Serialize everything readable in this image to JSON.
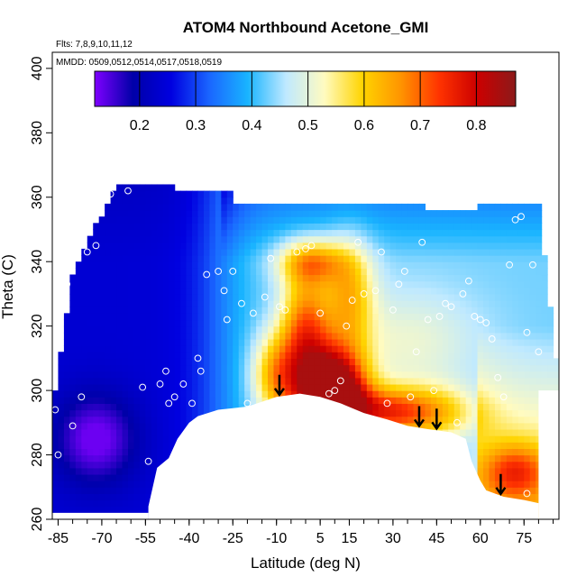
{
  "chart_data": {
    "type": "heatmap",
    "title": "ATOM4 Northbound Acetone_GMI",
    "notes": [
      "Flts: 7,8,9,10,11,12",
      "MMDD: 0509,0512,0514,0517,0518,0519"
    ],
    "xlabel": "Latitude (deg N)",
    "ylabel": "Theta (C)",
    "xlim": [
      -87,
      87
    ],
    "ylim": [
      260,
      405
    ],
    "xticks": [
      -85,
      -70,
      -55,
      -40,
      -25,
      -10,
      5,
      15,
      30,
      45,
      60,
      75
    ],
    "yticks": [
      260,
      280,
      300,
      320,
      340,
      360,
      380,
      400
    ],
    "colorbar": {
      "range": [
        0.12,
        0.87
      ],
      "ticks": [
        0.2,
        0.3,
        0.4,
        0.5,
        0.6,
        0.7,
        0.8
      ],
      "colors": [
        "#7f00ff",
        "#0000a8",
        "#0000e0",
        "#1a66ff",
        "#19b4ff",
        "#bfe9ff",
        "#fffbc0",
        "#ffd400",
        "#ff9400",
        "#ff3300",
        "#cc0000",
        "#8c1a1a"
      ]
    },
    "surface_boundary": {
      "lat": [
        -54,
        -51,
        -47,
        -44,
        -40,
        -37,
        -30,
        -20,
        -10,
        -2,
        5,
        12,
        20,
        28,
        35,
        42,
        50,
        55,
        57,
        60,
        62,
        68,
        75,
        80
      ],
      "theta": [
        264,
        276,
        279,
        285,
        290,
        292,
        294,
        295,
        298,
        299,
        298,
        296,
        293,
        291,
        289,
        288,
        287,
        285,
        278,
        272,
        269,
        267,
        266,
        265
      ]
    },
    "arrows_lat": [
      -9,
      39,
      45,
      67
    ],
    "observations": [
      {
        "lat": -86,
        "theta": 294
      },
      {
        "lat": -85,
        "theta": 280
      },
      {
        "lat": -84,
        "theta": 329
      },
      {
        "lat": -82,
        "theta": 333
      },
      {
        "lat": -80,
        "theta": 289
      },
      {
        "lat": -77,
        "theta": 298
      },
      {
        "lat": -75,
        "theta": 343
      },
      {
        "lat": -72,
        "theta": 345
      },
      {
        "lat": -67,
        "theta": 361
      },
      {
        "lat": -61,
        "theta": 362
      },
      {
        "lat": -56,
        "theta": 301
      },
      {
        "lat": -54,
        "theta": 278
      },
      {
        "lat": -50,
        "theta": 302
      },
      {
        "lat": -48,
        "theta": 306
      },
      {
        "lat": -47,
        "theta": 296
      },
      {
        "lat": -45,
        "theta": 298
      },
      {
        "lat": -42,
        "theta": 302
      },
      {
        "lat": -40,
        "theta": 280
      },
      {
        "lat": -39,
        "theta": 296
      },
      {
        "lat": -37,
        "theta": 310
      },
      {
        "lat": -36,
        "theta": 306
      },
      {
        "lat": -34,
        "theta": 336
      },
      {
        "lat": -30,
        "theta": 337
      },
      {
        "lat": -28,
        "theta": 331
      },
      {
        "lat": -27,
        "theta": 322
      },
      {
        "lat": -25,
        "theta": 337
      },
      {
        "lat": -22,
        "theta": 327
      },
      {
        "lat": -20,
        "theta": 296
      },
      {
        "lat": -18,
        "theta": 324
      },
      {
        "lat": -14,
        "theta": 329
      },
      {
        "lat": -12,
        "theta": 341
      },
      {
        "lat": -9,
        "theta": 326
      },
      {
        "lat": -7,
        "theta": 325
      },
      {
        "lat": -3,
        "theta": 343
      },
      {
        "lat": 0,
        "theta": 344
      },
      {
        "lat": 2,
        "theta": 345
      },
      {
        "lat": 5,
        "theta": 324
      },
      {
        "lat": 8,
        "theta": 299
      },
      {
        "lat": 10,
        "theta": 300
      },
      {
        "lat": 12,
        "theta": 303
      },
      {
        "lat": 14,
        "theta": 320
      },
      {
        "lat": 16,
        "theta": 328
      },
      {
        "lat": 18,
        "theta": 346
      },
      {
        "lat": 20,
        "theta": 330
      },
      {
        "lat": 24,
        "theta": 331
      },
      {
        "lat": 26,
        "theta": 343
      },
      {
        "lat": 28,
        "theta": 296
      },
      {
        "lat": 30,
        "theta": 325
      },
      {
        "lat": 32,
        "theta": 333
      },
      {
        "lat": 34,
        "theta": 337
      },
      {
        "lat": 36,
        "theta": 298
      },
      {
        "lat": 38,
        "theta": 312
      },
      {
        "lat": 40,
        "theta": 346
      },
      {
        "lat": 42,
        "theta": 322
      },
      {
        "lat": 44,
        "theta": 300
      },
      {
        "lat": 46,
        "theta": 323
      },
      {
        "lat": 48,
        "theta": 327
      },
      {
        "lat": 50,
        "theta": 326
      },
      {
        "lat": 52,
        "theta": 290
      },
      {
        "lat": 54,
        "theta": 330
      },
      {
        "lat": 56,
        "theta": 334
      },
      {
        "lat": 58,
        "theta": 323
      },
      {
        "lat": 60,
        "theta": 322
      },
      {
        "lat": 62,
        "theta": 321
      },
      {
        "lat": 64,
        "theta": 316
      },
      {
        "lat": 66,
        "theta": 304
      },
      {
        "lat": 68,
        "theta": 298
      },
      {
        "lat": 70,
        "theta": 339
      },
      {
        "lat": 72,
        "theta": 353
      },
      {
        "lat": 74,
        "theta": 354
      },
      {
        "lat": 76,
        "theta": 318
      },
      {
        "lat": 78,
        "theta": 339
      },
      {
        "lat": 80,
        "theta": 312
      },
      {
        "lat": 82,
        "theta": 297
      },
      {
        "lat": 76,
        "theta": 268
      }
    ]
  }
}
